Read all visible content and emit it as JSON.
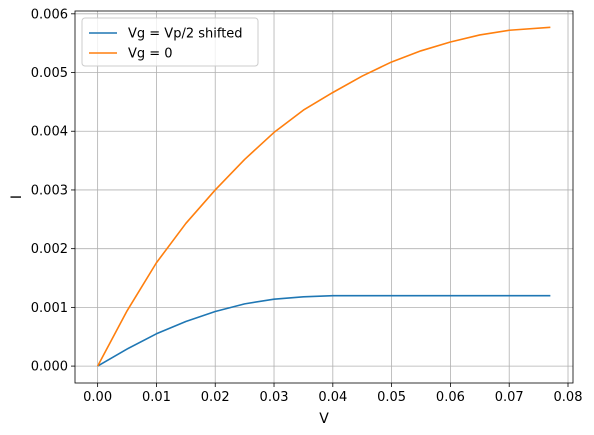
{
  "chart_data": {
    "type": "line",
    "title": "",
    "xlabel": "V",
    "ylabel": "I",
    "xlim": [
      -0.00385,
      0.08085
    ],
    "ylim": [
      -0.000288,
      0.006048
    ],
    "xticks": [
      0.0,
      0.01,
      0.02,
      0.03,
      0.04,
      0.05,
      0.06,
      0.07,
      0.08
    ],
    "xtick_labels": [
      "0.00",
      "0.01",
      "0.02",
      "0.03",
      "0.04",
      "0.05",
      "0.06",
      "0.07",
      "0.08"
    ],
    "yticks": [
      0.0,
      0.001,
      0.002,
      0.003,
      0.004,
      0.005,
      0.006
    ],
    "ytick_labels": [
      "0.000",
      "0.001",
      "0.002",
      "0.003",
      "0.004",
      "0.005",
      "0.006"
    ],
    "grid": true,
    "legend_position": "top-left",
    "series": [
      {
        "name": "Vg = Vp/2 shifted",
        "color": "#1f77b4",
        "x": [
          0.0,
          0.005,
          0.01,
          0.015,
          0.02,
          0.025,
          0.03,
          0.035,
          0.04,
          0.045,
          0.05,
          0.055,
          0.06,
          0.065,
          0.07,
          0.077
        ],
        "y": [
          0.0,
          0.00029,
          0.00055,
          0.00076,
          0.00093,
          0.00106,
          0.00114,
          0.00118,
          0.0012,
          0.0012,
          0.0012,
          0.0012,
          0.0012,
          0.0012,
          0.0012,
          0.0012
        ]
      },
      {
        "name": "Vg = 0",
        "color": "#ff7f0e",
        "x": [
          0.0,
          0.005,
          0.01,
          0.015,
          0.02,
          0.025,
          0.03,
          0.035,
          0.04,
          0.045,
          0.05,
          0.055,
          0.06,
          0.065,
          0.07,
          0.077
        ],
        "y": [
          0.0,
          0.00094,
          0.00176,
          0.00243,
          0.003,
          0.00352,
          0.00398,
          0.00436,
          0.00466,
          0.00494,
          0.00518,
          0.00537,
          0.00552,
          0.00564,
          0.00572,
          0.00577
        ]
      }
    ]
  }
}
